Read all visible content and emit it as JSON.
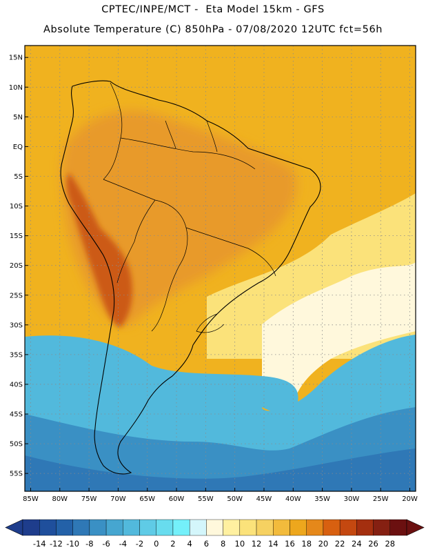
{
  "header": {
    "line1": "CPTEC/INPE/MCT -  Eta Model 15km - GFS",
    "line2": "Absolute Temperature (C) 850hPa - 07/08/2020 12UTC fct=56h"
  },
  "map": {
    "region": "South America",
    "projection": "lat-lon",
    "variable": "Absolute Temperature",
    "units": "C",
    "level": "850hPa",
    "lat_range": [
      -58,
      17
    ],
    "lon_range": [
      -86,
      -19
    ],
    "lat_labels": [
      "15N",
      "10N",
      "5N",
      "EQ",
      "5S",
      "10S",
      "15S",
      "20S",
      "25S",
      "30S",
      "35S",
      "40S",
      "45S",
      "50S",
      "55S"
    ],
    "lon_labels": [
      "85W",
      "80W",
      "75W",
      "70W",
      "65W",
      "60W",
      "55W",
      "50W",
      "45W",
      "40W",
      "35W",
      "30W",
      "25W",
      "20W"
    ],
    "grid": "dotted"
  },
  "colorbar": {
    "levels": [
      "-14",
      "-12",
      "-10",
      "-8",
      "-6",
      "-4",
      "-2",
      "0",
      "2",
      "4",
      "6",
      "8",
      "10",
      "12",
      "14",
      "16",
      "18",
      "20",
      "22",
      "24",
      "26",
      "28"
    ],
    "colors": [
      "#1e3d8c",
      "#1f4f9c",
      "#2361a8",
      "#2f78b6",
      "#3a90c4",
      "#46a6d0",
      "#52b9dc",
      "#5fcbe6",
      "#68dcee",
      "#74f0fa",
      "#d4f6fb",
      "#fff8dc",
      "#fff0a0",
      "#fbe27a",
      "#f6d161",
      "#f2bb3c",
      "#eda71d",
      "#e5881a",
      "#d86010",
      "#c44810",
      "#a42f0f",
      "#852012",
      "#6b1010"
    ],
    "under_color": "#1e3d8c",
    "over_color": "#6b1010"
  },
  "field_colors": {
    "tropics_ocean": "#f0b21f",
    "amazon": "#e89a2a",
    "andes_hot": "#cc5a18",
    "southeast": "#fbe27a",
    "pale_band": "#fff8dc",
    "cold_light": "#52b9dc",
    "cold_mid": "#3a90c4",
    "cold_deep": "#2f78b6"
  }
}
